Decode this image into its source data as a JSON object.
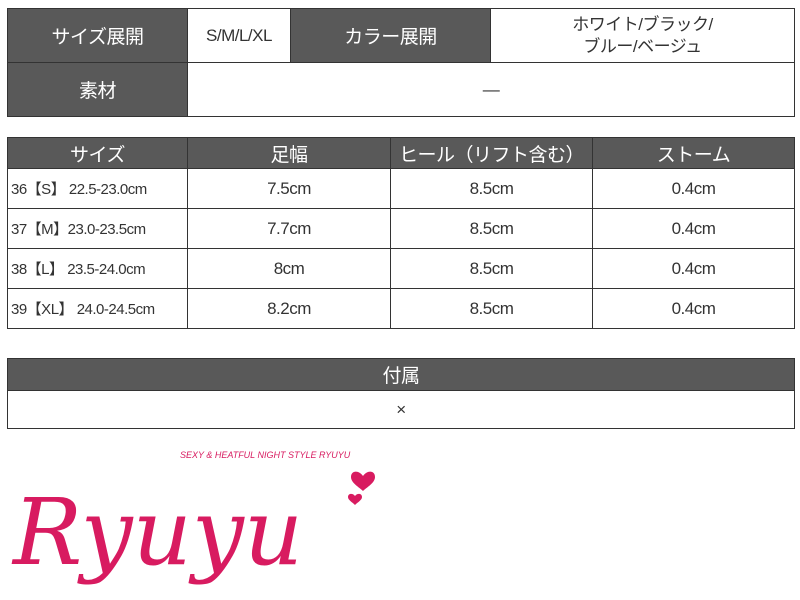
{
  "spec": {
    "size_label": "サイズ展開",
    "size_value": "S/M/L/XL",
    "color_label": "カラー展開",
    "color_value_1": "ホワイト/ブラック/",
    "color_value_2": "ブルー/ベージュ",
    "material_label": "素材",
    "material_value": "―"
  },
  "size_table": {
    "headers": [
      "サイズ",
      "足幅",
      "ヒール（リフト含む）",
      "ストーム"
    ],
    "rows": [
      [
        "36【S】 22.5-23.0cm",
        "7.5cm",
        "8.5cm",
        "0.4cm"
      ],
      [
        "37【M】23.0-23.5cm",
        "7.7cm",
        "8.5cm",
        "0.4cm"
      ],
      [
        "38【L】 23.5-24.0cm",
        "8cm",
        "8.5cm",
        "0.4cm"
      ],
      [
        "39【XL】 24.0-24.5cm",
        "8.2cm",
        "8.5cm",
        "0.4cm"
      ]
    ]
  },
  "accessories": {
    "label": "付属",
    "value": "×"
  },
  "logo": {
    "text": "Ryuyu",
    "tagline": "SEXY & HEATFUL NIGHT STYLE RYUYU",
    "color": "#d81b60"
  }
}
